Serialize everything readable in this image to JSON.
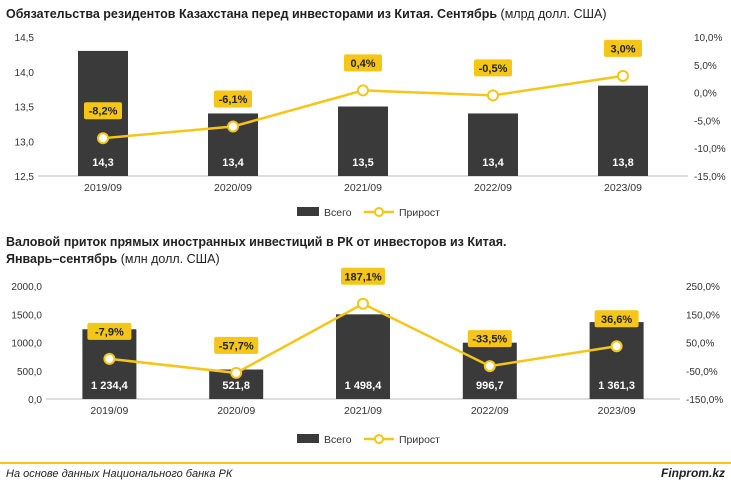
{
  "chart_data": [
    {
      "type": "bar+line",
      "title": "Обязательства резидентов Казахстана перед инвесторами из Китая. Сентябрь",
      "unit": "(млрд долл. США)",
      "categories": [
        "2019/09",
        "2020/09",
        "2021/09",
        "2022/09",
        "2023/09"
      ],
      "series": [
        {
          "name": "Всего",
          "type": "bar",
          "axis": "left",
          "values": [
            14.3,
            13.4,
            13.5,
            13.4,
            13.8
          ],
          "labels": [
            "14,3",
            "13,4",
            "13,5",
            "13,4",
            "13,8"
          ]
        },
        {
          "name": "Прирост",
          "type": "line",
          "axis": "right",
          "values": [
            -8.2,
            -6.1,
            0.4,
            -0.5,
            3.0
          ],
          "labels": [
            "-8,2%",
            "-6,1%",
            "0,4%",
            "-0,5%",
            "3,0%"
          ]
        }
      ],
      "y_left": {
        "min": 12.5,
        "max": 14.5,
        "ticks": [
          "12,5",
          "13,0",
          "13,5",
          "14,0",
          "14,5"
        ]
      },
      "y_right": {
        "min": -15,
        "max": 10,
        "ticks": [
          "-15,0%",
          "-10,0%",
          "-5,0%",
          "0,0%",
          "5,0%",
          "10,0%"
        ]
      },
      "legend": {
        "position": "bottom",
        "items": [
          "Всего",
          "Прирост"
        ]
      }
    },
    {
      "type": "bar+line",
      "title_line1": "Валовой приток прямых иностранных инвестиций в РК от инвесторов из Китая.",
      "title_line2": "Январь–сентябрь",
      "unit": "(млн долл. США)",
      "categories": [
        "2019/09",
        "2020/09",
        "2021/09",
        "2022/09",
        "2023/09"
      ],
      "series": [
        {
          "name": "Всего",
          "type": "bar",
          "axis": "left",
          "values": [
            1234.4,
            521.8,
            1498.4,
            996.7,
            1361.3
          ],
          "labels": [
            "1 234,4",
            "521,8",
            "1 498,4",
            "996,7",
            "1 361,3"
          ]
        },
        {
          "name": "Прирост",
          "type": "line",
          "axis": "right",
          "values": [
            -7.9,
            -57.7,
            187.1,
            -33.5,
            36.6
          ],
          "labels": [
            "-7,9%",
            "-57,7%",
            "187,1%",
            "-33,5%",
            "36,6%"
          ]
        }
      ],
      "y_left": {
        "min": 0,
        "max": 2000,
        "ticks": [
          "0,0",
          "500,0",
          "1000,0",
          "1500,0",
          "2000,0"
        ]
      },
      "y_right": {
        "min": -150,
        "max": 250,
        "ticks": [
          "-150,0%",
          "-50,0%",
          "50,0%",
          "150,0%",
          "250,0%"
        ]
      },
      "legend": {
        "position": "bottom",
        "items": [
          "Всего",
          "Прирост"
        ]
      }
    }
  ],
  "colors": {
    "bar": "#3a3a3a",
    "line": "#f5c518",
    "label_bg": "#f5c518",
    "marker_fill": "#ffffff"
  },
  "footer": {
    "source": "На основе данных Национального банка РК",
    "brand": "Finprom.kz"
  }
}
